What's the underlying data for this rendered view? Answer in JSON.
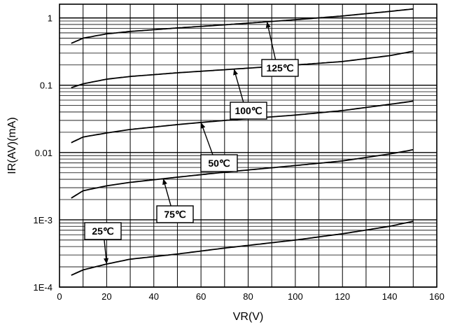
{
  "chart_data": {
    "type": "line",
    "xlabel": "VR(V)",
    "ylabel": "IR(AV)(mA)",
    "xlim": [
      0,
      160
    ],
    "ylim": [
      0.0001,
      1.6
    ],
    "y_scale": "log",
    "grid": true,
    "x_ticks": [
      "0",
      "20",
      "40",
      "60",
      "80",
      "100",
      "120",
      "140",
      "160"
    ],
    "y_ticks": [
      {
        "label": "1E-4",
        "value": 0.0001
      },
      {
        "label": "1E-3",
        "value": 0.001
      },
      {
        "label": "0.01",
        "value": 0.01
      },
      {
        "label": "0.1",
        "value": 0.1
      },
      {
        "label": "1",
        "value": 1
      }
    ],
    "series": [
      {
        "name": "125℃",
        "x": [
          5,
          10,
          20,
          30,
          50,
          70,
          100,
          120,
          140,
          150
        ],
        "y": [
          0.42,
          0.5,
          0.58,
          0.63,
          0.71,
          0.79,
          0.94,
          1.07,
          1.25,
          1.36
        ]
      },
      {
        "name": "100℃",
        "x": [
          5,
          10,
          20,
          30,
          50,
          70,
          100,
          120,
          140,
          150
        ],
        "y": [
          0.092,
          0.105,
          0.123,
          0.135,
          0.153,
          0.17,
          0.2,
          0.225,
          0.275,
          0.32
        ]
      },
      {
        "name": "50℃",
        "x": [
          5,
          10,
          20,
          30,
          50,
          70,
          100,
          120,
          140,
          150
        ],
        "y": [
          0.014,
          0.017,
          0.0195,
          0.022,
          0.026,
          0.03,
          0.036,
          0.042,
          0.052,
          0.058
        ]
      },
      {
        "name": "75℃",
        "x": [
          5,
          10,
          20,
          30,
          50,
          70,
          100,
          120,
          140,
          150
        ],
        "y": [
          0.0021,
          0.0027,
          0.0032,
          0.0036,
          0.0043,
          0.0051,
          0.0064,
          0.0075,
          0.0095,
          0.011
        ]
      },
      {
        "name": "25℃",
        "x": [
          5,
          10,
          20,
          30,
          50,
          70,
          100,
          120,
          140,
          150
        ],
        "y": [
          0.00015,
          0.00018,
          0.00022,
          0.00026,
          0.00031,
          0.00038,
          0.0005,
          0.00062,
          0.0008,
          0.00095
        ]
      }
    ],
    "callouts": [
      {
        "label": "125℃",
        "series": 0,
        "x_target": 88
      },
      {
        "label": "100℃",
        "series": 1,
        "x_target": 74
      },
      {
        "label": "50℃",
        "series": 2,
        "x_target": 60
      },
      {
        "label": "75℃",
        "series": 3,
        "x_target": 44
      },
      {
        "label": "25℃",
        "series": 4,
        "x_target": 20
      }
    ]
  }
}
